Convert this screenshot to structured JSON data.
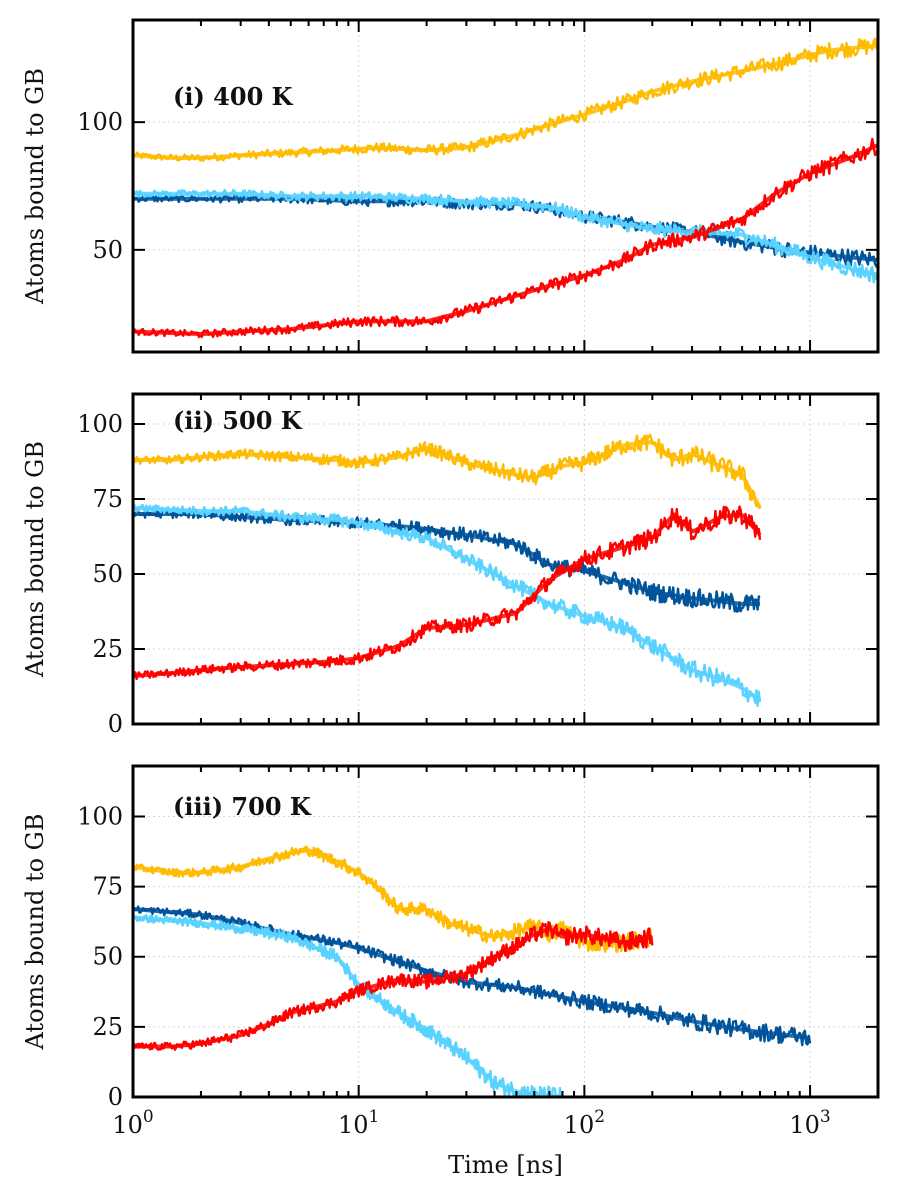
{
  "chart_data": [
    {
      "type": "line",
      "panel_label": "(i) 400 K",
      "ylabel": "Atoms bound to GB",
      "xlabel": "",
      "xscale": "log",
      "xlim": [
        1,
        2000
      ],
      "ylim": [
        10,
        140
      ],
      "yticks": [
        50,
        100
      ],
      "ytick_labels": [
        "50",
        "100"
      ],
      "grid": true,
      "series": [
        {
          "color": "#ffbb00",
          "x": [
            1,
            1.5,
            2,
            3,
            5,
            8,
            12,
            20,
            30,
            50,
            70,
            100,
            150,
            200,
            300,
            500,
            800,
            1200,
            2000
          ],
          "y": [
            87,
            86,
            86,
            87,
            88,
            89,
            90,
            89,
            90,
            95,
            99,
            103,
            108,
            112,
            116,
            120,
            124,
            128,
            130
          ]
        },
        {
          "color": "#00549a",
          "x": [
            1,
            2,
            3,
            5,
            10,
            20,
            30,
            50,
            70,
            100,
            150,
            200,
            300,
            500,
            800,
            1200,
            2000
          ],
          "y": [
            70,
            70,
            70,
            70,
            69,
            69,
            68,
            68,
            66,
            63,
            61,
            59,
            57,
            53,
            50,
            48,
            46
          ]
        },
        {
          "color": "#5ad2ff",
          "x": [
            1,
            2,
            3,
            5,
            10,
            20,
            30,
            50,
            70,
            100,
            150,
            200,
            300,
            500,
            800,
            1200,
            2000
          ],
          "y": [
            72,
            72,
            72,
            71,
            71,
            70,
            69,
            68,
            67,
            63,
            60,
            58,
            57,
            56,
            50,
            45,
            40
          ]
        },
        {
          "color": "#ff0000",
          "x": [
            1,
            2,
            3,
            5,
            8,
            10,
            20,
            30,
            50,
            70,
            100,
            150,
            200,
            300,
            500,
            700,
            1000,
            1500,
            2000
          ],
          "y": [
            18,
            17,
            18,
            19,
            21,
            22,
            22,
            26,
            32,
            36,
            40,
            46,
            52,
            55,
            62,
            72,
            80,
            86,
            91
          ]
        }
      ]
    },
    {
      "type": "line",
      "panel_label": "(ii) 500 K",
      "ylabel": "Atoms bound to GB",
      "xlabel": "",
      "xscale": "log",
      "xlim": [
        1,
        2000
      ],
      "ylim": [
        0,
        110
      ],
      "yticks": [
        0,
        25,
        50,
        75,
        100
      ],
      "ytick_labels": [
        "0",
        "25",
        "50",
        "75",
        "100"
      ],
      "grid": true,
      "series": [
        {
          "color": "#ffbb00",
          "x": [
            1,
            1.5,
            2,
            3,
            5,
            8,
            10,
            15,
            20,
            30,
            50,
            60,
            80,
            100,
            150,
            200,
            250,
            300,
            400,
            500,
            600
          ],
          "y": [
            88,
            88,
            89,
            90,
            89,
            88,
            87,
            89,
            92,
            87,
            83,
            82,
            86,
            87,
            93,
            94,
            88,
            90,
            86,
            83,
            72
          ]
        },
        {
          "color": "#00549a",
          "x": [
            1,
            2,
            3,
            5,
            10,
            15,
            20,
            30,
            50,
            70,
            100,
            150,
            200,
            300,
            500,
            600
          ],
          "y": [
            70,
            70,
            69,
            68,
            67,
            66,
            65,
            63,
            60,
            53,
            51,
            47,
            44,
            42,
            40,
            40
          ]
        },
        {
          "color": "#5ad2ff",
          "x": [
            1,
            2,
            3,
            5,
            8,
            10,
            15,
            20,
            30,
            50,
            70,
            100,
            150,
            200,
            300,
            400,
            500,
            600
          ],
          "y": [
            72,
            71,
            71,
            69,
            68,
            67,
            64,
            62,
            55,
            46,
            40,
            36,
            32,
            26,
            18,
            15,
            12,
            8
          ]
        },
        {
          "color": "#ff0000",
          "x": [
            1,
            1.5,
            2,
            3,
            5,
            8,
            10,
            15,
            20,
            30,
            50,
            70,
            100,
            150,
            200,
            250,
            300,
            400,
            500,
            600
          ],
          "y": [
            16,
            17,
            18,
            19,
            20,
            21,
            22,
            26,
            32,
            33,
            37,
            48,
            55,
            59,
            62,
            70,
            64,
            69,
            70,
            63
          ]
        }
      ]
    },
    {
      "type": "line",
      "panel_label": "(iii) 700 K",
      "ylabel": "Atoms bound to GB",
      "xlabel": "Time [ns]",
      "xscale": "log",
      "xlim": [
        1,
        2000
      ],
      "ylim": [
        0,
        118
      ],
      "yticks": [
        0,
        25,
        50,
        75,
        100
      ],
      "ytick_labels": [
        "0",
        "25",
        "50",
        "75",
        "100"
      ],
      "xticks": [
        1,
        10,
        100,
        1000
      ],
      "xtick_labels": [
        {
          "base": "10",
          "exp": "0"
        },
        {
          "base": "10",
          "exp": "1"
        },
        {
          "base": "10",
          "exp": "2"
        },
        {
          "base": "10",
          "exp": "3"
        }
      ],
      "grid": true,
      "series": [
        {
          "color": "#ffbb00",
          "x": [
            1,
            1.5,
            2,
            3,
            4,
            5,
            6,
            8,
            10,
            12,
            15,
            20,
            25,
            30,
            40,
            50,
            60,
            70,
            80,
            100,
            150,
            200
          ],
          "y": [
            82,
            80,
            80,
            82,
            85,
            87,
            88,
            84,
            80,
            75,
            67,
            67,
            62,
            60,
            57,
            59,
            61,
            58,
            60,
            55,
            55,
            57
          ]
        },
        {
          "color": "#00549a",
          "x": [
            1,
            2,
            3,
            5,
            8,
            10,
            20,
            30,
            50,
            100,
            200,
            300,
            500,
            800,
            1000
          ],
          "y": [
            67,
            65,
            62,
            58,
            55,
            53,
            45,
            41,
            39,
            34,
            30,
            27,
            24,
            22,
            21
          ]
        },
        {
          "color": "#5ad2ff",
          "x": [
            1,
            2,
            3,
            5,
            8,
            10,
            15,
            20,
            30,
            40,
            50,
            60,
            80
          ],
          "y": [
            64,
            62,
            60,
            57,
            50,
            40,
            30,
            24,
            14,
            5,
            2,
            1,
            0
          ]
        },
        {
          "color": "#ff0000",
          "x": [
            1,
            1.5,
            2,
            3,
            4,
            5,
            8,
            10,
            15,
            20,
            30,
            40,
            50,
            60,
            70,
            80,
            100,
            150,
            200
          ],
          "y": [
            18,
            18,
            19,
            22,
            26,
            30,
            34,
            38,
            42,
            41,
            44,
            50,
            54,
            58,
            60,
            57,
            58,
            55,
            57
          ]
        }
      ]
    }
  ]
}
